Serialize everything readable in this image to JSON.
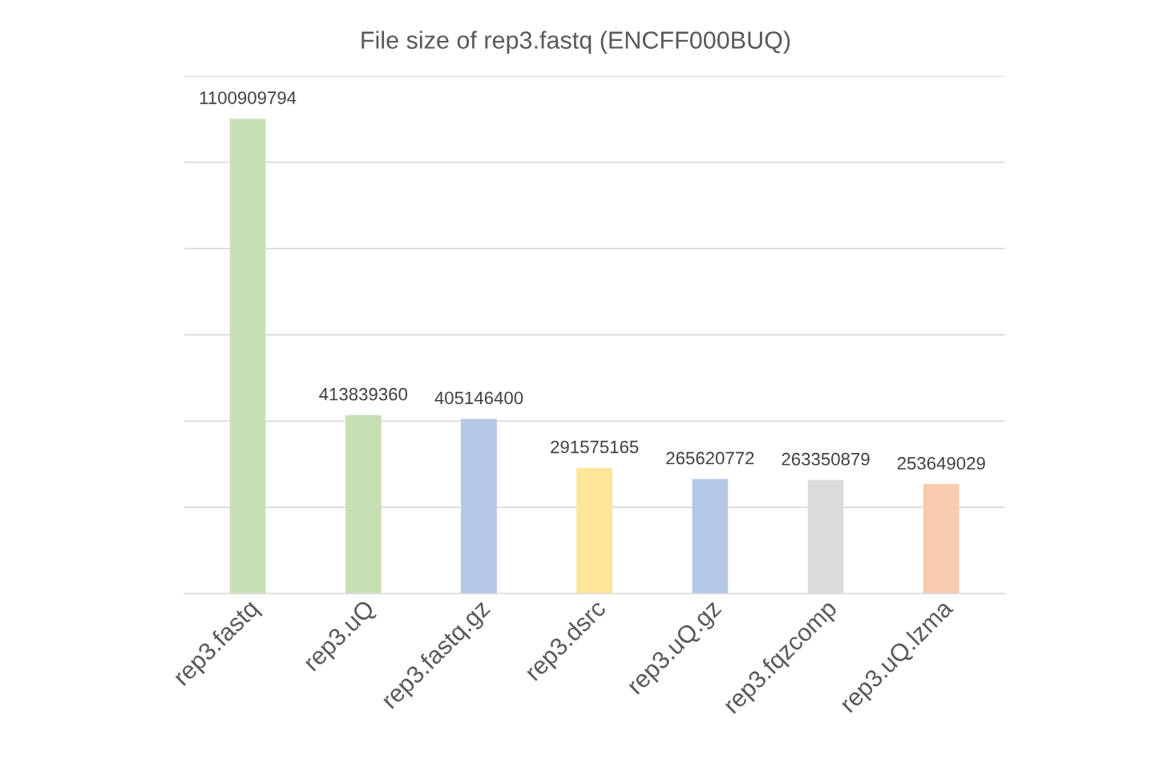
{
  "chart_data": {
    "type": "bar",
    "title": "File size of rep3.fastq (ENCFF000BUQ)",
    "categories": [
      "rep3.fastq",
      "rep3.uQ",
      "rep3.fastq.gz",
      "rep3.dsrc",
      "rep3.uQ.gz",
      "rep3.fqzcomp",
      "rep3.uQ.lzma"
    ],
    "values": [
      1100909794,
      413839360,
      405146400,
      291575165,
      265620772,
      263350879,
      253649029
    ],
    "colors": [
      "#c6e0b4",
      "#c6e0b4",
      "#b4c7e7",
      "#ffe699",
      "#b4c7e7",
      "#dbdbdb",
      "#f8cbad"
    ],
    "ylim": [
      0,
      1200000000
    ],
    "yticks": [
      {
        "value": 0,
        "label": null
      },
      {
        "value": 200000000,
        "label": null
      },
      {
        "value": 400000000,
        "label": null
      },
      {
        "value": 600000000,
        "label": null
      },
      {
        "value": 800000000,
        "label": null
      },
      {
        "value": 1000000000,
        "label": null
      },
      {
        "value": 1200000000,
        "label": null
      }
    ],
    "grid": "y",
    "tick_labels": "x",
    "data_labels": true
  }
}
